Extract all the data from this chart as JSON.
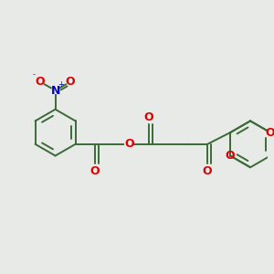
{
  "background_color": "#e8eae8",
  "bond_color": "#3a6b35",
  "bond_width": 1.4,
  "O_color": "#dd0000",
  "N_color": "#0000cc",
  "figsize": [
    3.0,
    3.0
  ],
  "dpi": 100,
  "xlim": [
    0,
    300
  ],
  "ylim": [
    0,
    300
  ]
}
